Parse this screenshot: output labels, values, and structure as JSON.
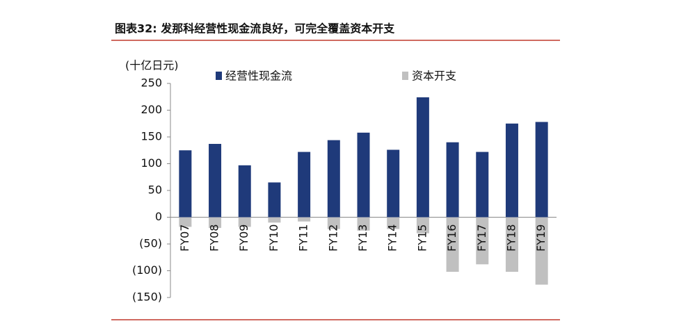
{
  "chart_data": {
    "type": "bar",
    "title": "图表32:  发那科经营性现金流良好，可完全覆盖资本开支",
    "y_label": "(十亿日元)",
    "categories": [
      "FY07",
      "FY08",
      "FY09",
      "FY10",
      "FY11",
      "FY12",
      "FY13",
      "FY14",
      "FY15",
      "FY16",
      "FY17",
      "FY18",
      "FY19"
    ],
    "series": [
      {
        "name": "经营性现金流",
        "color": "#1f3a7a",
        "values": [
          125,
          137,
          97,
          65,
          122,
          144,
          158,
          126,
          224,
          140,
          122,
          175,
          178
        ]
      },
      {
        "name": "资本开支",
        "color": "#c0c0c0",
        "values": [
          -18,
          -20,
          -18,
          -10,
          -8,
          -22,
          -25,
          -22,
          -30,
          -102,
          -88,
          -102,
          -126
        ]
      }
    ],
    "ylim": [
      -150,
      250
    ],
    "yticks": [
      {
        "value": -150,
        "label": "(150)"
      },
      {
        "value": -100,
        "label": "(100)"
      },
      {
        "value": -50,
        "label": "(50)"
      },
      0,
      50,
      100,
      150,
      200,
      250
    ],
    "grid": false,
    "legend": "top"
  }
}
